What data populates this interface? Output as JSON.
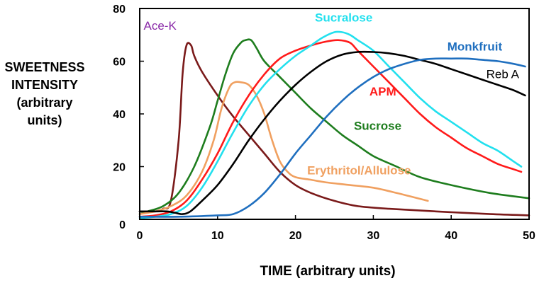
{
  "chart_data": {
    "type": "line",
    "title": "",
    "xlabel": "TIME (arbitrary units)",
    "ylabel_lines": [
      "SWEETNESS",
      "INTENSITY",
      "(arbitrary",
      "units)"
    ],
    "xlim": [
      0,
      50
    ],
    "ylim": [
      0,
      80
    ],
    "x_ticks": [
      "0",
      "10",
      "20",
      "30",
      "40",
      "50"
    ],
    "y_ticks": [
      "0",
      "20",
      "40",
      "60",
      "80"
    ],
    "grid": false,
    "legend": "labels placed next to curves",
    "series": [
      {
        "name": "Ace-K",
        "color": "#7a1a1a",
        "label_color": "#8a2aa8",
        "label_bold": false,
        "points": [
          [
            0,
            3
          ],
          [
            2,
            3
          ],
          [
            3,
            4
          ],
          [
            4,
            7
          ],
          [
            5,
            30
          ],
          [
            5.5,
            55
          ],
          [
            6,
            66
          ],
          [
            6.6,
            66
          ],
          [
            7,
            62
          ],
          [
            8,
            56
          ],
          [
            10,
            47
          ],
          [
            12,
            39
          ],
          [
            14,
            32
          ],
          [
            16,
            25
          ],
          [
            18,
            18
          ],
          [
            20,
            13
          ],
          [
            22,
            10
          ],
          [
            25,
            7
          ],
          [
            28,
            5
          ],
          [
            32,
            4
          ],
          [
            38,
            3
          ],
          [
            45,
            2
          ],
          [
            50,
            1.5
          ]
        ]
      },
      {
        "name": "Sucrose",
        "color": "#1e7d1e",
        "label_color": "#1e7d1e",
        "label_bold": true,
        "points": [
          [
            0,
            2
          ],
          [
            1,
            3
          ],
          [
            3,
            5
          ],
          [
            5,
            10
          ],
          [
            7,
            20
          ],
          [
            9,
            35
          ],
          [
            10,
            45
          ],
          [
            11,
            55
          ],
          [
            12,
            63
          ],
          [
            13,
            67
          ],
          [
            13.6,
            68
          ],
          [
            14.3,
            68
          ],
          [
            15,
            65
          ],
          [
            16,
            60
          ],
          [
            18,
            54
          ],
          [
            20,
            48
          ],
          [
            22,
            42
          ],
          [
            24,
            37
          ],
          [
            26,
            32
          ],
          [
            28,
            28
          ],
          [
            30,
            24
          ],
          [
            33,
            20
          ],
          [
            36,
            16
          ],
          [
            40,
            13
          ],
          [
            45,
            10
          ],
          [
            50,
            8
          ]
        ]
      },
      {
        "name": "Erythritol/Allulose",
        "color": "#f0a060",
        "label_color": "#f0a060",
        "label_bold": true,
        "points": [
          [
            0,
            2
          ],
          [
            2,
            3
          ],
          [
            4,
            5
          ],
          [
            6,
            9
          ],
          [
            8,
            18
          ],
          [
            9.5,
            30
          ],
          [
            10.5,
            42
          ],
          [
            11.5,
            50
          ],
          [
            12.2,
            52
          ],
          [
            13,
            52
          ],
          [
            14,
            51
          ],
          [
            15,
            47
          ],
          [
            16,
            40
          ],
          [
            17,
            30
          ],
          [
            18,
            22
          ],
          [
            19,
            18
          ],
          [
            20,
            16
          ],
          [
            22,
            15
          ],
          [
            24,
            14
          ],
          [
            27,
            13
          ],
          [
            30,
            12
          ],
          [
            33,
            10
          ],
          [
            37,
            7
          ]
        ]
      },
      {
        "name": "APM",
        "color": "#ff1a1a",
        "label_color": "#ff1a1a",
        "label_bold": true,
        "points": [
          [
            0,
            1
          ],
          [
            2,
            1.5
          ],
          [
            4,
            3
          ],
          [
            6,
            7
          ],
          [
            8,
            15
          ],
          [
            10,
            25
          ],
          [
            12,
            37
          ],
          [
            14,
            47
          ],
          [
            16,
            55
          ],
          [
            18,
            61
          ],
          [
            20,
            64
          ],
          [
            22,
            66
          ],
          [
            24,
            67.5
          ],
          [
            25.5,
            68
          ],
          [
            27,
            67
          ],
          [
            28,
            64
          ],
          [
            30,
            58
          ],
          [
            32,
            52
          ],
          [
            34,
            46
          ],
          [
            36,
            40
          ],
          [
            38,
            35
          ],
          [
            40,
            31
          ],
          [
            42,
            27
          ],
          [
            44,
            24
          ],
          [
            46,
            21
          ],
          [
            48,
            19
          ],
          [
            49,
            18
          ]
        ]
      },
      {
        "name": "Sucralose",
        "color": "#22e0ee",
        "label_color": "#22e0ee",
        "label_bold": true,
        "points": [
          [
            0,
            0.5
          ],
          [
            2,
            1
          ],
          [
            4,
            2
          ],
          [
            6,
            5
          ],
          [
            8,
            12
          ],
          [
            10,
            22
          ],
          [
            12,
            33
          ],
          [
            14,
            43
          ],
          [
            16,
            51
          ],
          [
            18,
            57
          ],
          [
            20,
            62
          ],
          [
            22,
            66
          ],
          [
            23.5,
            69
          ],
          [
            25,
            71
          ],
          [
            26,
            71
          ],
          [
            27,
            70
          ],
          [
            28,
            68
          ],
          [
            30,
            64
          ],
          [
            32,
            58
          ],
          [
            34,
            52
          ],
          [
            36,
            46
          ],
          [
            38,
            41
          ],
          [
            40,
            37
          ],
          [
            42,
            33
          ],
          [
            44,
            29
          ],
          [
            46,
            26
          ],
          [
            48,
            22
          ],
          [
            49,
            20
          ]
        ]
      },
      {
        "name": "Reb A",
        "color": "#000000",
        "label_color": "#000000",
        "label_bold": false,
        "points": [
          [
            0,
            3
          ],
          [
            2,
            3
          ],
          [
            3.5,
            3
          ],
          [
            4.5,
            2.5
          ],
          [
            5.5,
            2
          ],
          [
            6.5,
            3
          ],
          [
            8,
            7
          ],
          [
            10,
            13
          ],
          [
            12,
            21
          ],
          [
            14,
            30
          ],
          [
            16,
            38
          ],
          [
            18,
            45
          ],
          [
            20,
            51
          ],
          [
            22,
            56
          ],
          [
            24,
            60
          ],
          [
            26,
            62.5
          ],
          [
            28,
            63.5
          ],
          [
            30,
            63.5
          ],
          [
            32,
            63
          ],
          [
            34,
            62
          ],
          [
            36,
            60.5
          ],
          [
            38,
            59
          ],
          [
            40,
            57
          ],
          [
            42,
            55
          ],
          [
            44,
            53
          ],
          [
            46,
            51
          ],
          [
            48,
            49
          ],
          [
            49.5,
            47
          ]
        ]
      },
      {
        "name": "Monkfruit",
        "color": "#1f6fbf",
        "label_color": "#1f6fbf",
        "label_bold": true,
        "points": [
          [
            0,
            1
          ],
          [
            5,
            1
          ],
          [
            10,
            1.5
          ],
          [
            12,
            2
          ],
          [
            14,
            5
          ],
          [
            16,
            10
          ],
          [
            18,
            17
          ],
          [
            20,
            25
          ],
          [
            22,
            32
          ],
          [
            24,
            39
          ],
          [
            26,
            45
          ],
          [
            28,
            50
          ],
          [
            30,
            54
          ],
          [
            32,
            57
          ],
          [
            34,
            59
          ],
          [
            36,
            60.5
          ],
          [
            38,
            61
          ],
          [
            40,
            61
          ],
          [
            42,
            61
          ],
          [
            44,
            60.5
          ],
          [
            46,
            60
          ],
          [
            48,
            59
          ],
          [
            49.5,
            58
          ]
        ]
      }
    ],
    "series_label_positions_data": {
      "Ace-K": [
        0.5,
        72
      ],
      "Sucralose": [
        22.5,
        75
      ],
      "Monkfruit": [
        39.5,
        64
      ],
      "Reb A": [
        44.5,
        53.5
      ],
      "APM": [
        29.5,
        47
      ],
      "Sucrose": [
        27.5,
        34
      ],
      "Erythritol/Allulose": [
        21.5,
        17
      ]
    }
  }
}
